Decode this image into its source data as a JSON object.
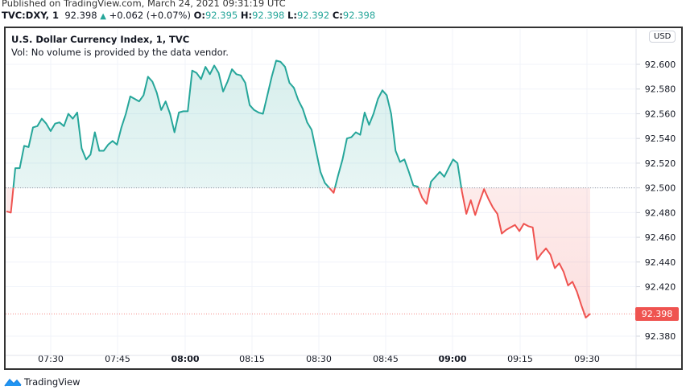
{
  "header": {
    "published": "Published on TradingView.com, March 24, 2021 09:31:19 UTC",
    "symbol": "TVC:DXY, 1",
    "last": "92.398",
    "change": "+0.062 (+0.07%)",
    "o_label": "O:",
    "o": "92.395",
    "h_label": "H:",
    "h": "92.398",
    "l_label": "L:",
    "l": "92.392",
    "c_label": "C:",
    "c": "92.398"
  },
  "legend": {
    "title": "U.S. Dollar Currency Index, 1, TVC",
    "volume": "Vol: No volume is provided by the data vendor."
  },
  "currency_button": "USD",
  "current_price_tag": "92.398",
  "footer": {
    "brand": "TradingView"
  },
  "colors": {
    "up": "#26a69a",
    "down": "#ef5350",
    "up_fill": "#e0f2f1",
    "down_fill": "#fde4e4",
    "grid": "#f0f3fa"
  },
  "chart_data": {
    "type": "area",
    "title": "U.S. Dollar Currency Index, 1, TVC",
    "xlabel": "",
    "ylabel": "USD",
    "baseline": 92.5,
    "ylim": [
      92.37,
      92.63
    ],
    "x_ticks": [
      {
        "label": "07:30",
        "bold": false
      },
      {
        "label": "07:45",
        "bold": false
      },
      {
        "label": "08:00",
        "bold": true
      },
      {
        "label": "08:15",
        "bold": false
      },
      {
        "label": "08:30",
        "bold": false
      },
      {
        "label": "08:45",
        "bold": false
      },
      {
        "label": "09:00",
        "bold": true
      },
      {
        "label": "09:15",
        "bold": false
      },
      {
        "label": "09:30",
        "bold": false
      }
    ],
    "y_ticks": [
      "92.600",
      "92.580",
      "92.560",
      "92.540",
      "92.520",
      "92.500",
      "92.480",
      "92.460",
      "92.440",
      "92.420",
      "92.380"
    ],
    "series": [
      {
        "name": "DXY",
        "x_start": "07:19",
        "interval_min": 1,
        "values": [
          92.481,
          92.48,
          92.516,
          92.516,
          92.534,
          92.533,
          92.549,
          92.55,
          92.556,
          92.552,
          92.546,
          92.552,
          92.553,
          92.55,
          92.56,
          92.556,
          92.561,
          92.532,
          92.523,
          92.527,
          92.545,
          92.53,
          92.53,
          92.535,
          92.538,
          92.535,
          92.549,
          92.56,
          92.574,
          92.572,
          92.57,
          92.575,
          92.59,
          92.586,
          92.577,
          92.563,
          92.57,
          92.56,
          92.545,
          92.561,
          92.562,
          92.562,
          92.595,
          92.593,
          92.588,
          92.598,
          92.592,
          92.599,
          92.593,
          92.578,
          92.586,
          92.596,
          92.592,
          92.591,
          92.585,
          92.567,
          92.563,
          92.561,
          92.56,
          92.575,
          92.59,
          92.603,
          92.602,
          92.598,
          92.585,
          92.581,
          92.571,
          92.564,
          92.553,
          92.547,
          92.53,
          92.513,
          92.504,
          92.5,
          92.496,
          92.51,
          92.523,
          92.54,
          92.541,
          92.545,
          92.543,
          92.561,
          92.551,
          92.56,
          92.572,
          92.579,
          92.575,
          92.56,
          92.53,
          92.521,
          92.523,
          92.513,
          92.502,
          92.501,
          92.492,
          92.487,
          92.505,
          92.509,
          92.513,
          92.509,
          92.516,
          92.523,
          92.52,
          92.497,
          92.479,
          92.49,
          92.478,
          92.489,
          92.499,
          92.491,
          92.484,
          92.479,
          92.463,
          92.466,
          92.468,
          92.47,
          92.465,
          92.471,
          92.469,
          92.468,
          92.442,
          92.447,
          92.451,
          92.446,
          92.435,
          92.439,
          92.432,
          92.421,
          92.424,
          92.416,
          92.405,
          92.395,
          92.398
        ]
      }
    ]
  }
}
